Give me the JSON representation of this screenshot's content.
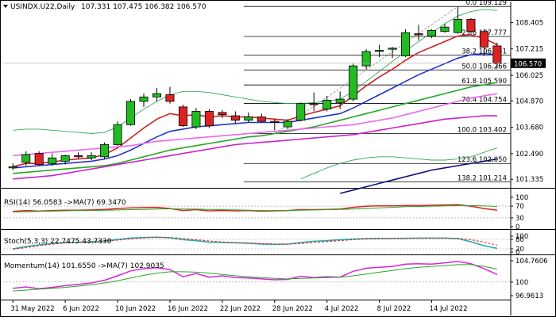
{
  "header": {
    "title": "USINDX.U22,Daily",
    "ohlc": "107.331 107.475 106.382 106.570"
  },
  "colors": {
    "up": "#22bb22",
    "down": "#dd2222",
    "ema_fast": "#cc2222",
    "ema_mid": "#2233cc",
    "ema_slow": "#22aa22",
    "ma_pink": "#ee66ee",
    "ma_magenta": "#cc22cc",
    "bollinger": "#33aa55",
    "ma_navy": "#111177",
    "price_box": "#000000"
  },
  "chart_data": [
    {
      "type": "candlestick",
      "y_ticks": [
        "108.405",
        "107.215",
        "106.025",
        "104.870",
        "103.680",
        "102.490",
        "101.335"
      ],
      "current_price": "106.570",
      "fib_levels": [
        {
          "label": "0.0 109.129",
          "value": 109.129
        },
        {
          "label": "23.6 107.777",
          "value": 107.777
        },
        {
          "label": "38.2 106.941",
          "value": 106.941
        },
        {
          "label": "50.0 106.266",
          "value": 106.266
        },
        {
          "label": "61.8 105.590",
          "value": 105.59
        },
        {
          "label": "76.4 104.754",
          "value": 104.754
        },
        {
          "label": "100.0 103.402",
          "value": 103.402
        },
        {
          "label": "123.6 102.050",
          "value": 102.05
        },
        {
          "label": "138.2 101.214",
          "value": 101.214
        }
      ],
      "x_labels": [
        {
          "i": 0,
          "label": "31 May 2022"
        },
        {
          "i": 4,
          "label": "6 Jun 2022"
        },
        {
          "i": 8,
          "label": "10 Jun 2022"
        },
        {
          "i": 12,
          "label": "16 Jun 2022"
        },
        {
          "i": 16,
          "label": "22 Jun 2022"
        },
        {
          "i": 20,
          "label": "28 Jun 2022"
        },
        {
          "i": 24,
          "label": "4 Jul 2022"
        },
        {
          "i": 28,
          "label": "8 Jul 2022"
        },
        {
          "i": 32,
          "label": "14 Jul 2022"
        }
      ],
      "candles": [
        {
          "o": 101.85,
          "h": 102.05,
          "l": 101.75,
          "c": 101.9
        },
        {
          "o": 102.1,
          "h": 102.6,
          "l": 101.95,
          "c": 102.45
        },
        {
          "o": 102.5,
          "h": 102.6,
          "l": 101.95,
          "c": 102.0
        },
        {
          "o": 102.05,
          "h": 102.5,
          "l": 101.95,
          "c": 102.3
        },
        {
          "o": 102.15,
          "h": 102.45,
          "l": 102.0,
          "c": 102.4
        },
        {
          "o": 102.4,
          "h": 102.55,
          "l": 102.25,
          "c": 102.35
        },
        {
          "o": 102.3,
          "h": 102.55,
          "l": 102.2,
          "c": 102.4
        },
        {
          "o": 102.35,
          "h": 103.0,
          "l": 102.25,
          "c": 102.9
        },
        {
          "o": 102.9,
          "h": 103.95,
          "l": 102.85,
          "c": 103.8
        },
        {
          "o": 103.8,
          "h": 104.95,
          "l": 103.75,
          "c": 104.85
        },
        {
          "o": 104.85,
          "h": 105.2,
          "l": 104.6,
          "c": 105.05
        },
        {
          "o": 105.05,
          "h": 105.45,
          "l": 104.85,
          "c": 105.2
        },
        {
          "o": 105.15,
          "h": 105.5,
          "l": 104.75,
          "c": 104.85
        },
        {
          "o": 104.6,
          "h": 104.7,
          "l": 103.7,
          "c": 103.75
        },
        {
          "o": 103.7,
          "h": 104.55,
          "l": 103.6,
          "c": 104.4
        },
        {
          "o": 104.4,
          "h": 104.5,
          "l": 103.65,
          "c": 103.75
        },
        {
          "o": 104.35,
          "h": 104.45,
          "l": 104.1,
          "c": 104.25
        },
        {
          "o": 104.2,
          "h": 104.4,
          "l": 103.85,
          "c": 104.0
        },
        {
          "o": 104.0,
          "h": 104.35,
          "l": 103.9,
          "c": 104.15
        },
        {
          "o": 104.15,
          "h": 104.3,
          "l": 103.9,
          "c": 103.95
        },
        {
          "o": 103.95,
          "h": 104.05,
          "l": 103.55,
          "c": 103.9
        },
        {
          "o": 103.7,
          "h": 104.05,
          "l": 103.6,
          "c": 103.95
        },
        {
          "o": 104.0,
          "h": 104.8,
          "l": 103.95,
          "c": 104.75
        },
        {
          "o": 104.75,
          "h": 105.25,
          "l": 104.4,
          "c": 104.7
        },
        {
          "o": 104.5,
          "h": 105.1,
          "l": 104.4,
          "c": 104.9
        },
        {
          "o": 104.8,
          "h": 105.3,
          "l": 104.5,
          "c": 104.95
        },
        {
          "o": 104.95,
          "h": 106.55,
          "l": 104.85,
          "c": 106.45
        },
        {
          "o": 106.45,
          "h": 107.2,
          "l": 106.3,
          "c": 107.1
        },
        {
          "o": 107.1,
          "h": 107.4,
          "l": 106.85,
          "c": 107.15
        },
        {
          "o": 107.2,
          "h": 107.3,
          "l": 106.8,
          "c": 107.25
        },
        {
          "o": 106.9,
          "h": 108.1,
          "l": 106.85,
          "c": 107.95
        },
        {
          "o": 107.9,
          "h": 108.3,
          "l": 107.6,
          "c": 107.85
        },
        {
          "o": 107.8,
          "h": 108.1,
          "l": 107.7,
          "c": 108.05
        },
        {
          "o": 108.0,
          "h": 108.35,
          "l": 107.95,
          "c": 108.2
        },
        {
          "o": 107.95,
          "h": 109.13,
          "l": 107.9,
          "c": 108.55
        },
        {
          "o": 108.55,
          "h": 108.6,
          "l": 107.9,
          "c": 108.0
        },
        {
          "o": 108.0,
          "h": 108.1,
          "l": 106.9,
          "c": 107.3
        },
        {
          "o": 107.35,
          "h": 107.5,
          "l": 106.35,
          "c": 106.57
        }
      ],
      "lines": [
        {
          "name": "ema_fast",
          "color": "#cc2222",
          "values": [
            101.9,
            102.05,
            102.05,
            102.12,
            102.2,
            102.25,
            102.3,
            102.45,
            102.75,
            103.2,
            103.65,
            104.05,
            104.3,
            104.2,
            104.25,
            104.15,
            104.2,
            104.15,
            104.15,
            104.1,
            104.05,
            104.0,
            104.2,
            104.35,
            104.5,
            104.65,
            105.1,
            105.55,
            105.95,
            106.3,
            106.7,
            107.05,
            107.3,
            107.55,
            107.8,
            107.85,
            107.7,
            107.4
          ]
        },
        {
          "name": "ema_mid",
          "color": "#2233cc",
          "values": [
            101.85,
            101.9,
            101.95,
            102.0,
            102.05,
            102.1,
            102.15,
            102.25,
            102.4,
            102.65,
            102.95,
            103.25,
            103.5,
            103.6,
            103.7,
            103.75,
            103.8,
            103.85,
            103.9,
            103.9,
            103.9,
            103.9,
            104.0,
            104.1,
            104.2,
            104.3,
            104.55,
            104.85,
            105.15,
            105.45,
            105.75,
            106.05,
            106.3,
            106.55,
            106.8,
            106.95,
            107.0,
            106.95
          ]
        },
        {
          "name": "ema_slow",
          "color": "#22aa22",
          "values": [
            101.6,
            101.65,
            101.7,
            101.75,
            101.8,
            101.85,
            101.9,
            101.95,
            102.05,
            102.2,
            102.35,
            102.5,
            102.65,
            102.75,
            102.85,
            102.95,
            103.05,
            103.15,
            103.25,
            103.3,
            103.4,
            103.5,
            103.6,
            103.7,
            103.85,
            104.0,
            104.15,
            104.3,
            104.45,
            104.6,
            104.75,
            104.9,
            105.05,
            105.2,
            105.35,
            105.5,
            105.6,
            105.7
          ]
        },
        {
          "name": "ma_pink",
          "color": "#ee66ee",
          "values": [
            102.4,
            102.45,
            102.5,
            102.55,
            102.6,
            102.65,
            102.7,
            102.75,
            102.8,
            102.85,
            102.95,
            103.05,
            103.1,
            103.15,
            103.2,
            103.25,
            103.3,
            103.35,
            103.4,
            103.45,
            103.5,
            103.55,
            103.6,
            103.65,
            103.7,
            103.75,
            103.8,
            103.9,
            104.0,
            104.1,
            104.25,
            104.4,
            104.55,
            104.7,
            104.85,
            105.0,
            105.1,
            105.2
          ]
        },
        {
          "name": "ma_magenta",
          "color": "#cc22cc",
          "values": [
            101.35,
            101.4,
            101.45,
            101.5,
            101.6,
            101.7,
            101.8,
            101.9,
            102.0,
            102.1,
            102.2,
            102.3,
            102.4,
            102.5,
            102.6,
            102.7,
            102.8,
            102.9,
            102.95,
            103.0,
            103.05,
            103.1,
            103.15,
            103.2,
            103.25,
            103.3,
            103.35,
            103.45,
            103.55,
            103.65,
            103.75,
            103.85,
            103.95,
            104.05,
            104.1,
            104.15,
            104.2,
            104.2
          ]
        },
        {
          "name": "boll_upper",
          "color": "#33aa55",
          "values": [
            103.55,
            103.6,
            103.6,
            103.55,
            103.5,
            103.45,
            103.4,
            103.45,
            103.7,
            104.1,
            104.5,
            104.85,
            105.15,
            105.3,
            105.3,
            105.25,
            105.15,
            105.05,
            104.95,
            104.85,
            104.8,
            104.75,
            104.75,
            104.8,
            104.85,
            104.95,
            105.3,
            105.75,
            106.2,
            106.65,
            107.1,
            107.55,
            107.95,
            108.35,
            108.7,
            108.9,
            109.0,
            108.95
          ]
        },
        {
          "name": "boll_lower",
          "color": "#33aa55",
          "values": [
            null,
            null,
            null,
            null,
            null,
            null,
            null,
            null,
            null,
            null,
            null,
            null,
            null,
            null,
            null,
            null,
            null,
            null,
            null,
            null,
            null,
            null,
            101.35,
            101.6,
            101.85,
            102.05,
            102.2,
            102.3,
            102.35,
            102.35,
            102.3,
            102.25,
            102.2,
            102.2,
            102.25,
            102.35,
            102.55,
            102.75
          ]
        },
        {
          "name": "ma_navy",
          "color": "#111177",
          "values": [
            null,
            null,
            null,
            null,
            null,
            null,
            null,
            null,
            null,
            null,
            null,
            null,
            null,
            null,
            null,
            null,
            null,
            null,
            null,
            null,
            null,
            null,
            null,
            null,
            null,
            100.7,
            100.85,
            101.0,
            101.15,
            101.3,
            101.45,
            101.6,
            101.75,
            101.85,
            101.95,
            102.05,
            102.15,
            102.25
          ]
        }
      ]
    },
    {
      "type": "line",
      "label": "RSI(14) 56.0583  ->MA(7) 69.3470",
      "y_ticks": [
        "100",
        "70",
        "30",
        "0"
      ],
      "ylim": [
        0,
        100
      ],
      "series": [
        {
          "color": "#dd2222",
          "values": [
            52,
            55,
            53,
            55,
            56,
            56,
            57,
            59,
            62,
            64,
            65,
            66,
            62,
            55,
            58,
            54,
            55,
            54,
            55,
            53,
            54,
            55,
            58,
            58,
            59,
            60,
            66,
            70,
            71,
            71,
            72,
            72,
            73,
            74,
            75,
            70,
            62,
            56
          ]
        },
        {
          "color": "#22aa22",
          "values": [
            50,
            51,
            52,
            53,
            54,
            55,
            55,
            56,
            57,
            58,
            59,
            60,
            61,
            60,
            60,
            59,
            58,
            57,
            56,
            55,
            55,
            55,
            56,
            57,
            58,
            59,
            60,
            62,
            64,
            66,
            68,
            69,
            70,
            71,
            72,
            72,
            71,
            69
          ]
        }
      ]
    },
    {
      "type": "line",
      "label": "Stoch(5,3,3) 22.7475 43.7330",
      "y_ticks": [
        "100",
        "80",
        "20",
        "0"
      ],
      "ylim": [
        0,
        100
      ],
      "series": [
        {
          "color": "#22aaaa",
          "values": [
            20,
            35,
            45,
            55,
            60,
            62,
            65,
            70,
            80,
            88,
            92,
            94,
            90,
            78,
            72,
            62,
            60,
            58,
            55,
            50,
            48,
            50,
            60,
            68,
            72,
            78,
            82,
            85,
            86,
            86,
            87,
            88,
            88,
            88,
            85,
            65,
            40,
            23
          ]
        },
        {
          "color": "#dd2222",
          "values": [
            18,
            28,
            40,
            50,
            57,
            60,
            62,
            66,
            75,
            83,
            89,
            92,
            92,
            86,
            78,
            70,
            64,
            60,
            58,
            54,
            51,
            50,
            54,
            60,
            66,
            72,
            78,
            82,
            84,
            85,
            86,
            87,
            87,
            88,
            87,
            78,
            62,
            44
          ]
        }
      ]
    },
    {
      "type": "line",
      "label": "Momentum(14) 101.6550  ->MA(7) 102.9035",
      "y_ticks": [
        "104.7606",
        "100",
        "96.9613"
      ],
      "ylim": [
        96.9613,
        104.7606
      ],
      "series": [
        {
          "color": "#dd22dd",
          "values": [
            98.6,
            98.9,
            98.5,
            98.8,
            99.2,
            99.5,
            99.8,
            100.4,
            101.4,
            102.5,
            103.0,
            103.2,
            102.8,
            101.2,
            101.9,
            101.1,
            101.4,
            101.0,
            100.9,
            100.7,
            100.5,
            100.6,
            101.3,
            101.0,
            101.2,
            101.1,
            102.4,
            103.1,
            103.3,
            103.5,
            104.0,
            104.1,
            104.0,
            104.3,
            104.6,
            104.1,
            103.0,
            101.7
          ]
        },
        {
          "color": "#22aa22",
          "values": [
            98.0,
            98.2,
            98.4,
            98.6,
            98.8,
            99.1,
            99.4,
            99.8,
            100.3,
            100.9,
            101.5,
            102.0,
            102.3,
            102.3,
            102.2,
            102.0,
            101.7,
            101.4,
            101.2,
            101.0,
            100.8,
            100.7,
            100.8,
            100.9,
            101.0,
            101.1,
            101.4,
            101.8,
            102.2,
            102.6,
            103.0,
            103.3,
            103.5,
            103.7,
            103.9,
            103.9,
            103.5,
            102.9
          ]
        }
      ]
    }
  ]
}
